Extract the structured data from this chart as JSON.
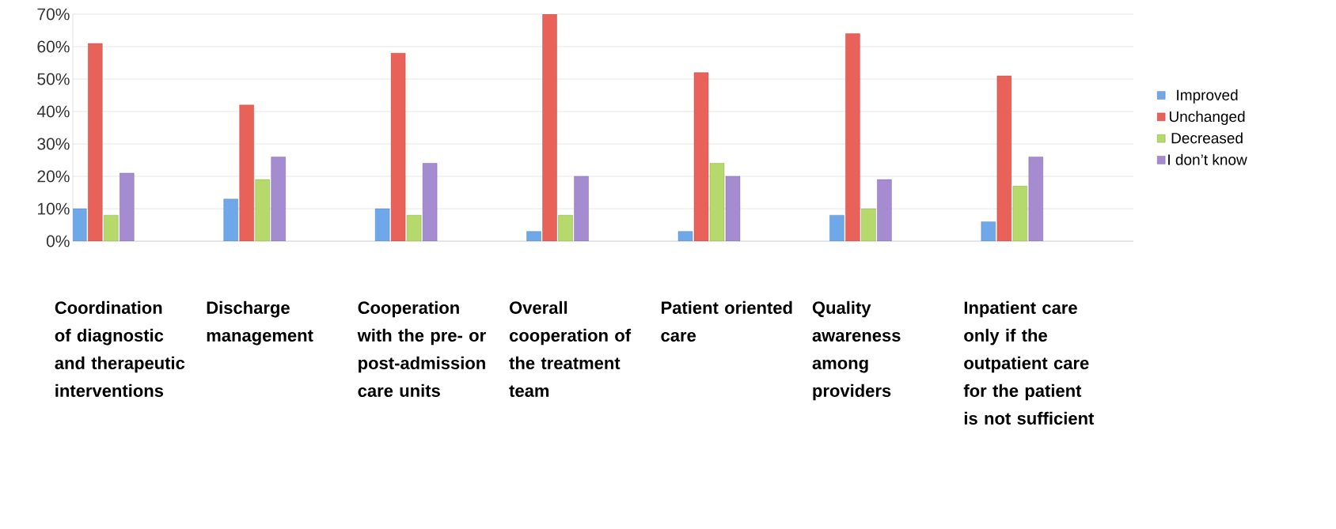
{
  "chart_data": {
    "type": "bar",
    "categories": [
      "Coordination of diagnostic and therapeutic interventions",
      "Discharge management",
      "Cooperation with the pre- or post-admission care units",
      "Overall cooperation of the treatment team",
      "Patient oriented care",
      "Quality awareness among providers",
      "Inpatient care only if the outpatient care for the patient is not sufficient"
    ],
    "series": [
      {
        "name": "Improved",
        "color": "#6fa8e8",
        "values": [
          10,
          13,
          10,
          3,
          3,
          8,
          6
        ]
      },
      {
        "name": "Unchanged",
        "color": "#e8625a",
        "values": [
          61,
          42,
          58,
          70,
          52,
          64,
          51
        ]
      },
      {
        "name": "Decreased",
        "color": "#b5d96a",
        "values": [
          8,
          19,
          8,
          8,
          24,
          10,
          17
        ]
      },
      {
        "name": "I don’t know",
        "color": "#a58bd0",
        "values": [
          21,
          26,
          24,
          20,
          20,
          19,
          26
        ]
      }
    ],
    "ylim": [
      0,
      70
    ],
    "yticks": [
      {
        "value": 0,
        "label": "0%"
      },
      {
        "value": 10,
        "label": "10%"
      },
      {
        "value": 20,
        "label": "20%"
      },
      {
        "value": 30,
        "label": "30%"
      },
      {
        "value": 40,
        "label": "40%"
      },
      {
        "value": 50,
        "label": "50%"
      },
      {
        "value": 60,
        "label": "60%"
      },
      {
        "value": 70,
        "label": "70%"
      }
    ],
    "grid": "y",
    "legend": "right"
  }
}
